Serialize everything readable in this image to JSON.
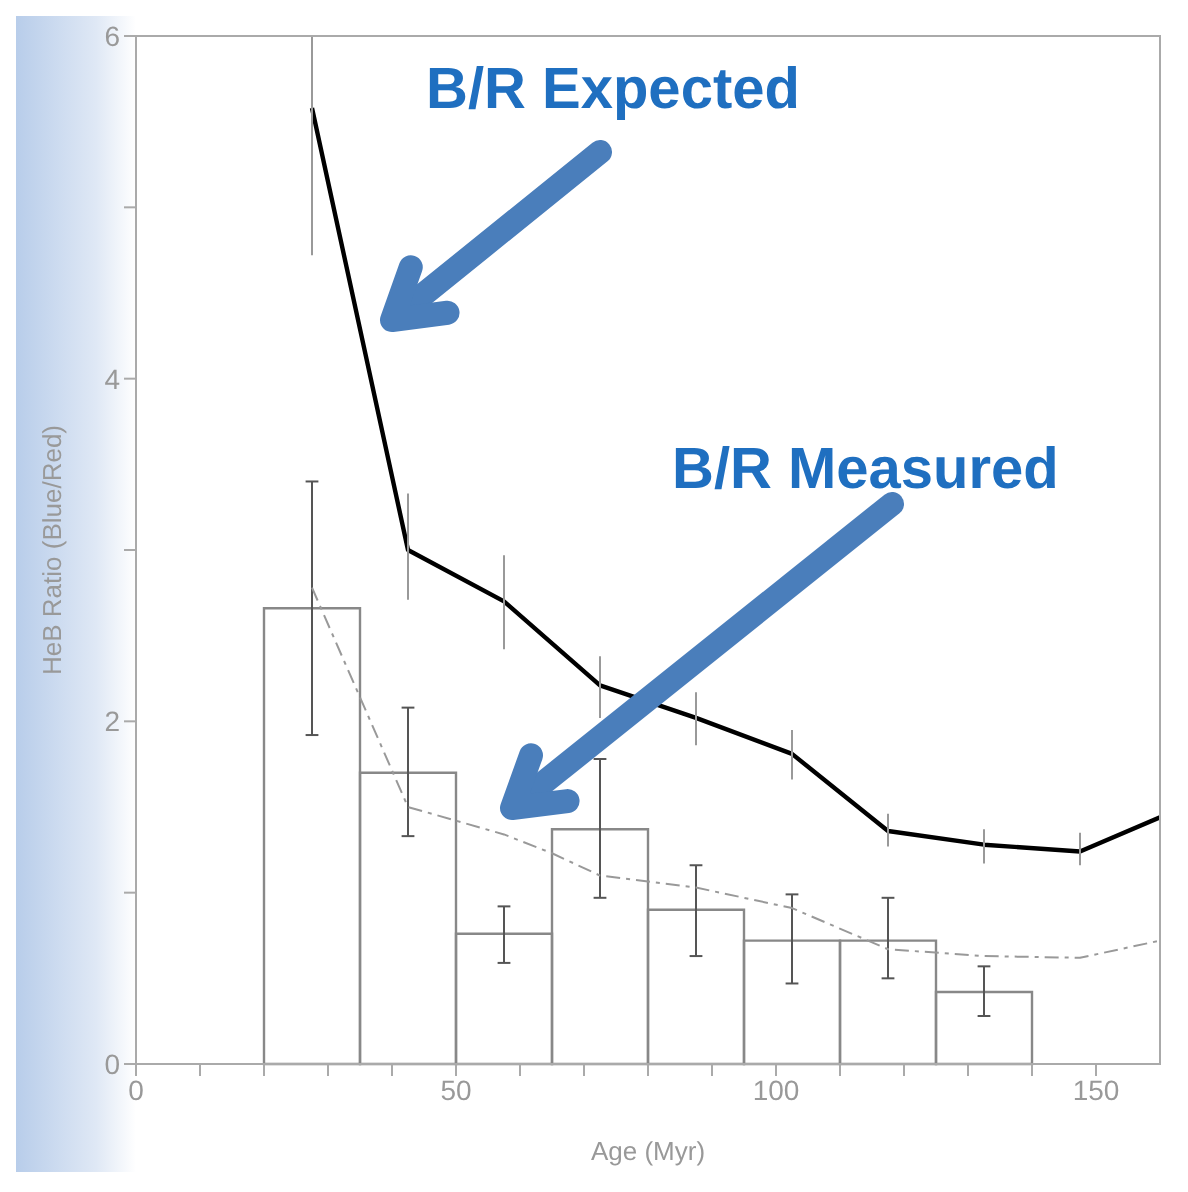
{
  "chart_data": {
    "type": "line",
    "xlabel": "Age (Myr)",
    "ylabel": "HeB Ratio (Blue/Red)",
    "xlim": [
      0,
      160
    ],
    "ylim": [
      0,
      6
    ],
    "xticks": [
      0,
      {
        "value": 10,
        "label": null
      },
      {
        "value": 20,
        "label": null
      },
      {
        "value": 30,
        "label": null
      },
      {
        "value": 40,
        "label": null
      },
      50,
      {
        "value": 60,
        "label": null
      },
      {
        "value": 70,
        "label": null
      },
      {
        "value": 80,
        "label": null
      },
      {
        "value": 90,
        "label": null
      },
      100,
      {
        "value": 110,
        "label": null
      },
      {
        "value": 120,
        "label": null
      },
      {
        "value": 130,
        "label": null
      },
      {
        "value": 140,
        "label": null
      },
      150
    ],
    "yticks": [
      0,
      {
        "value": 1,
        "label": null
      },
      2,
      {
        "value": 3,
        "label": null
      },
      4,
      {
        "value": 5,
        "label": null
      },
      6
    ],
    "marker": "none",
    "series": [
      {
        "type": "line",
        "color": "#000000",
        "x": [
          27.5,
          42.5,
          57.5,
          72.5,
          87.5,
          102.5,
          117.5,
          132.5,
          147.5,
          160
        ],
        "values": [
          5.58,
          3.0,
          2.7,
          2.21,
          2.02,
          1.81,
          1.36,
          1.28,
          1.24,
          1.44
        ],
        "errors": [
          [
            4.72,
            6
          ],
          [
            2.71,
            3.33
          ],
          [
            2.42,
            2.97
          ],
          [
            2.02,
            2.38
          ],
          [
            1.86,
            2.17
          ],
          [
            1.66,
            1.95
          ],
          [
            1.27,
            1.46
          ],
          [
            1.17,
            1.37
          ],
          [
            1.16,
            1.35
          ],
          null
        ],
        "line_style": "solid"
      },
      {
        "type": "histogram",
        "color": "#888888",
        "bins": [
          20,
          35,
          50,
          65,
          80,
          95,
          110,
          125,
          140
        ],
        "values": [
          2.66,
          1.7,
          0.76,
          1.37,
          0.9,
          0.72,
          0.72,
          0.42
        ],
        "errors": [
          [
            1.92,
            3.4
          ],
          [
            1.33,
            2.08
          ],
          [
            0.59,
            0.92
          ],
          [
            0.97,
            1.78
          ],
          [
            0.63,
            1.16
          ],
          [
            0.47,
            0.99
          ],
          [
            0.5,
            0.97
          ],
          [
            0.28,
            0.57
          ]
        ]
      },
      {
        "type": "line",
        "color": "#999999",
        "x": [
          27.5,
          42.5,
          57.5,
          65,
          72.5,
          87.5,
          102.5,
          117.5,
          132.5,
          147.5,
          160
        ],
        "values": [
          2.78,
          1.5,
          1.34,
          1.23,
          1.1,
          1.03,
          0.91,
          0.67,
          0.63,
          0.62,
          0.72
        ],
        "line_style": "dashed"
      }
    ],
    "annotations": [
      "B/R Expected",
      "B/R Measured"
    ]
  }
}
